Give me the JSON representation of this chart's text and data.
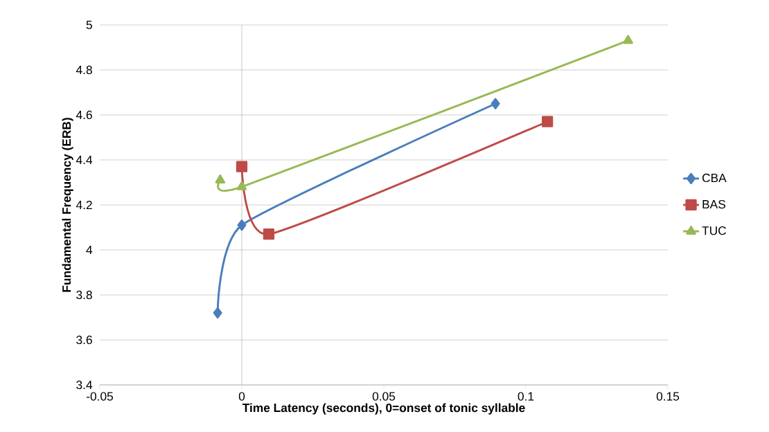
{
  "chart_data": {
    "type": "line",
    "xlabel": "Time Latency (seconds), 0=onset of tonic syllable",
    "ylabel": "Fundamental Frequency (ERB)",
    "xlim": [
      -0.05,
      0.15
    ],
    "xticks": [
      -0.05,
      0,
      0.05,
      0.1,
      0.15
    ],
    "ylim": [
      3.4,
      5
    ],
    "yticks": [
      3.4,
      3.6,
      3.8,
      4,
      4.2,
      4.4,
      4.6,
      4.8,
      5
    ],
    "grid": "y",
    "legend": "right",
    "line_style": "solid",
    "series": [
      {
        "name": "CBA",
        "color": "#4a7ebb",
        "marker": "diamond",
        "x": [
          -0.0085,
          0,
          0.0893
        ],
        "values": [
          3.72,
          4.11,
          4.65
        ]
      },
      {
        "name": "BAS",
        "color": "#be4b48",
        "marker": "square",
        "x": [
          0,
          0.0095,
          0.1076
        ],
        "values": [
          4.37,
          4.07,
          4.57
        ]
      },
      {
        "name": "TUC",
        "color": "#98b954",
        "marker": "triangle",
        "x": [
          -0.0076,
          0,
          0.136
        ],
        "values": [
          4.31,
          4.28,
          4.93
        ]
      }
    ]
  }
}
